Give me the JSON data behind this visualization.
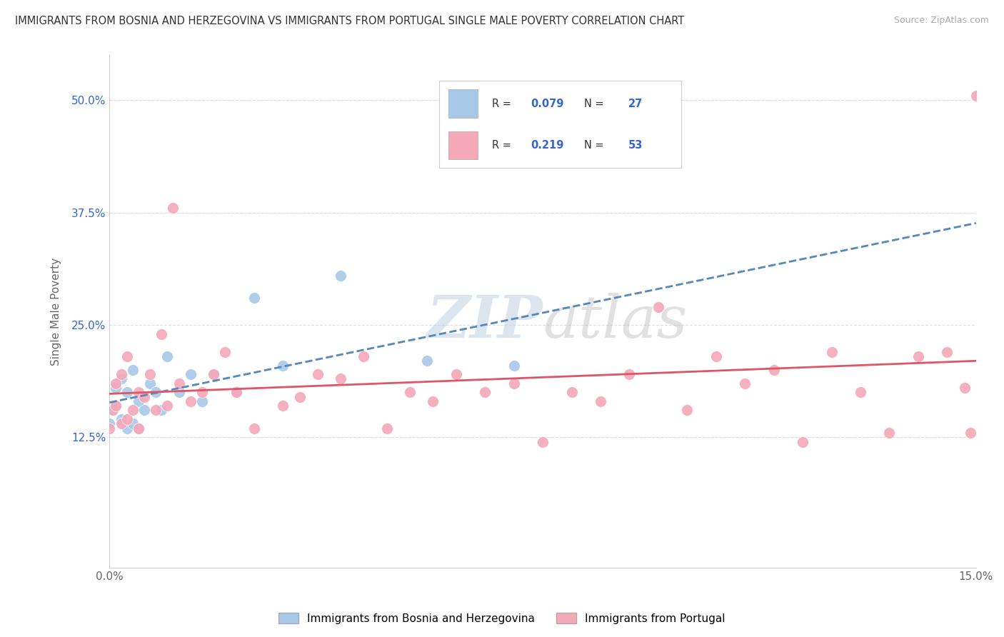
{
  "title": "IMMIGRANTS FROM BOSNIA AND HERZEGOVINA VS IMMIGRANTS FROM PORTUGAL SINGLE MALE POVERTY CORRELATION CHART",
  "source": "Source: ZipAtlas.com",
  "ylabel": "Single Male Poverty",
  "xlim": [
    0.0,
    0.15
  ],
  "ylim": [
    -0.02,
    0.55
  ],
  "xtick_positions": [
    0.0,
    0.15
  ],
  "xticklabels": [
    "0.0%",
    "15.0%"
  ],
  "ytick_positions": [
    0.125,
    0.25,
    0.375,
    0.5
  ],
  "ytick_labels": [
    "12.5%",
    "25.0%",
    "37.5%",
    "50.0%"
  ],
  "bosnia_R": "0.079",
  "bosnia_N": "27",
  "portugal_R": "0.219",
  "portugal_N": "53",
  "bosnia_color": "#a8c8e8",
  "portugal_color": "#f4a8b8",
  "bosnia_line_color": "#5588bb",
  "portugal_line_color": "#dd5566",
  "legend_label_bosnia": "Immigrants from Bosnia and Herzegovina",
  "legend_label_portugal": "Immigrants from Portugal",
  "bosnia_x": [
    0.0,
    0.0005,
    0.001,
    0.001,
    0.002,
    0.002,
    0.003,
    0.003,
    0.004,
    0.004,
    0.005,
    0.005,
    0.006,
    0.007,
    0.008,
    0.009,
    0.01,
    0.012,
    0.014,
    0.016,
    0.018,
    0.022,
    0.025,
    0.03,
    0.04,
    0.055,
    0.07
  ],
  "bosnia_y": [
    0.14,
    0.155,
    0.16,
    0.18,
    0.145,
    0.19,
    0.135,
    0.175,
    0.14,
    0.2,
    0.165,
    0.135,
    0.155,
    0.185,
    0.175,
    0.155,
    0.215,
    0.175,
    0.195,
    0.165,
    0.195,
    0.175,
    0.28,
    0.205,
    0.305,
    0.21,
    0.205
  ],
  "portugal_x": [
    0.0,
    0.0005,
    0.001,
    0.001,
    0.002,
    0.002,
    0.003,
    0.003,
    0.004,
    0.005,
    0.005,
    0.006,
    0.007,
    0.008,
    0.009,
    0.01,
    0.011,
    0.012,
    0.014,
    0.016,
    0.018,
    0.02,
    0.022,
    0.025,
    0.03,
    0.033,
    0.036,
    0.04,
    0.044,
    0.048,
    0.052,
    0.056,
    0.06,
    0.065,
    0.07,
    0.075,
    0.08,
    0.085,
    0.09,
    0.095,
    0.1,
    0.105,
    0.11,
    0.115,
    0.12,
    0.125,
    0.13,
    0.135,
    0.14,
    0.145,
    0.148,
    0.149,
    0.15
  ],
  "portugal_y": [
    0.135,
    0.155,
    0.16,
    0.185,
    0.14,
    0.195,
    0.145,
    0.215,
    0.155,
    0.175,
    0.135,
    0.17,
    0.195,
    0.155,
    0.24,
    0.16,
    0.38,
    0.185,
    0.165,
    0.175,
    0.195,
    0.22,
    0.175,
    0.135,
    0.16,
    0.17,
    0.195,
    0.19,
    0.215,
    0.135,
    0.175,
    0.165,
    0.195,
    0.175,
    0.185,
    0.12,
    0.175,
    0.165,
    0.195,
    0.27,
    0.155,
    0.215,
    0.185,
    0.2,
    0.12,
    0.22,
    0.175,
    0.13,
    0.215,
    0.22,
    0.18,
    0.13,
    0.505
  ]
}
